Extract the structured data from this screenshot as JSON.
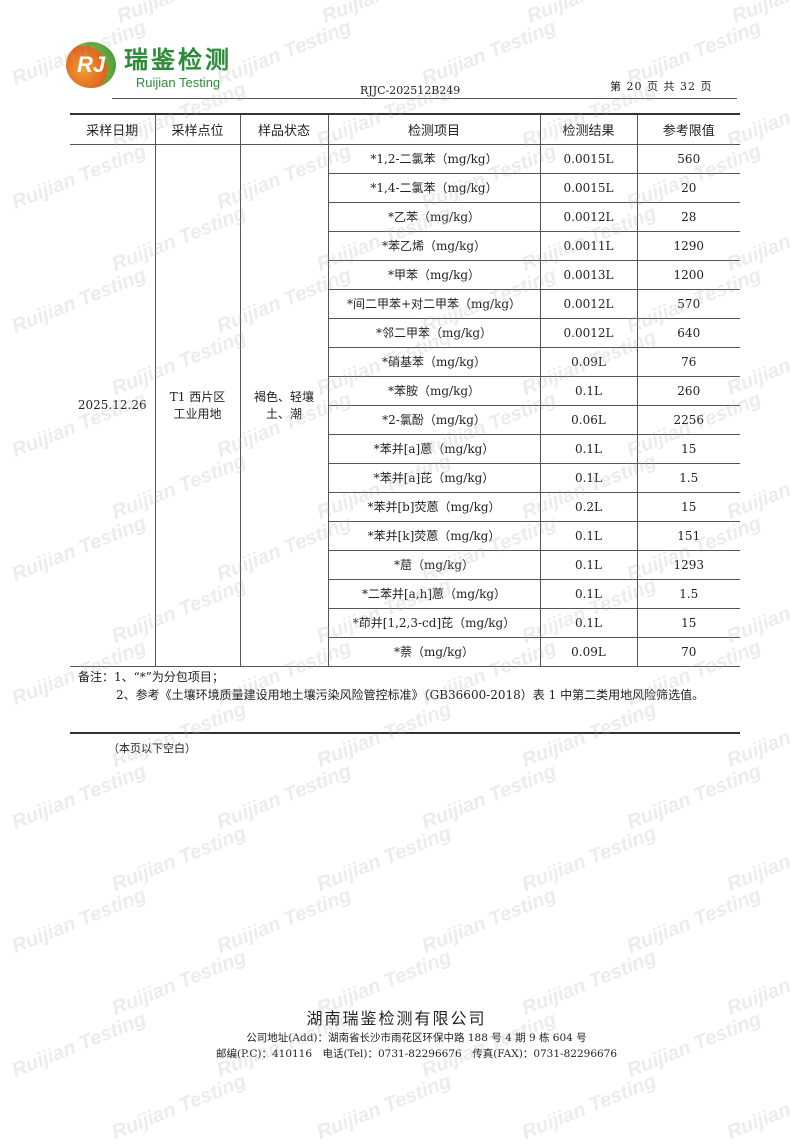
{
  "header": {
    "logo_cn": "瑞鉴检测",
    "logo_en": "Ruijian Testing",
    "logo_mark": "RJ",
    "report_no": "RJJC-202512B249",
    "page": "第 20 页 共 32 页"
  },
  "table": {
    "columns": [
      "采样日期",
      "采样点位",
      "样品状态",
      "检测项目",
      "检测结果",
      "参考限值"
    ],
    "date": "2025.12.26",
    "location_line1": "T1 西片区",
    "location_line2": "工业用地",
    "state_line1": "褐色、轻壤",
    "state_line2": "土、潮",
    "rows": [
      [
        "*1,2-二氯苯（mg/kg）",
        "0.0015L",
        "560"
      ],
      [
        "*1,4-二氯苯（mg/kg）",
        "0.0015L",
        "20"
      ],
      [
        "*乙苯（mg/kg）",
        "0.0012L",
        "28"
      ],
      [
        "*苯乙烯（mg/kg）",
        "0.0011L",
        "1290"
      ],
      [
        "*甲苯（mg/kg）",
        "0.0013L",
        "1200"
      ],
      [
        "*间二甲苯+对二甲苯（mg/kg）",
        "0.0012L",
        "570"
      ],
      [
        "*邻二甲苯（mg/kg）",
        "0.0012L",
        "640"
      ],
      [
        "*硝基苯（mg/kg）",
        "0.09L",
        "76"
      ],
      [
        "*苯胺（mg/kg）",
        "0.1L",
        "260"
      ],
      [
        "*2-氯酚（mg/kg）",
        "0.06L",
        "2256"
      ],
      [
        "*苯并[a]蒽（mg/kg）",
        "0.1L",
        "15"
      ],
      [
        "*苯并[a]芘（mg/kg）",
        "0.1L",
        "1.5"
      ],
      [
        "*苯并[b]荧蒽（mg/kg）",
        "0.2L",
        "15"
      ],
      [
        "*苯并[k]荧蒽（mg/kg）",
        "0.1L",
        "151"
      ],
      [
        "*䓛（mg/kg）",
        "0.1L",
        "1293"
      ],
      [
        "*二苯并[a,h]蒽（mg/kg）",
        "0.1L",
        "1.5"
      ],
      [
        "*茚并[1,2,3-cd]芘（mg/kg）",
        "0.1L",
        "15"
      ],
      [
        "*萘（mg/kg）",
        "0.09L",
        "70"
      ]
    ]
  },
  "notes": {
    "line1": "备注：1、“*”为分包项目；",
    "line2": "2、参考《土壤环境质量建设用地土壤污染风险管控标准》（GB36600-2018）表 1 中第二类用地风险筛选值。",
    "blank": "（本页以下空白）"
  },
  "footer": {
    "company": "湖南瑞鉴检测有限公司",
    "address": "公司地址(Add)：湖南省长沙市雨花区环保中路 188 号 4 期 9 栋 604 号",
    "contact": "邮编(P.C)：410116　电话(Tel)：0731-82296676　传真(FAX)：0731-82296676"
  },
  "watermark": "Ruijian Testing"
}
